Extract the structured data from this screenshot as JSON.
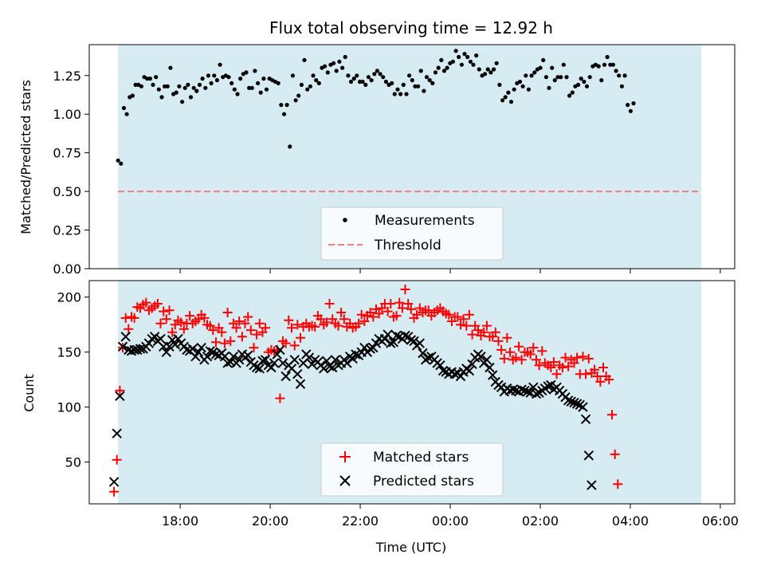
{
  "figure": {
    "title": "Flux total observing time = 12.92 h"
  },
  "colors": {
    "span": "#add8e6",
    "measurement": "#000000",
    "threshold": "#f08080",
    "matched": "#ff0000",
    "predicted": "#000000"
  },
  "chart_data": [
    {
      "type": "scatter",
      "title": "Flux total observing time = 12.92 h",
      "ylabel": "Matched/Predicted stars",
      "xlabel": "",
      "x_unit": "hours",
      "xlim": [
        15.98,
        30.32
      ],
      "ylim": [
        0.0,
        1.45
      ],
      "yticks": [
        0.0,
        0.25,
        0.5,
        0.75,
        1.0,
        1.25
      ],
      "ytick_labels": [
        "0.00",
        "0.25",
        "0.50",
        "0.75",
        "1.00",
        "1.25"
      ],
      "shaded_span": [
        16.62,
        29.58
      ],
      "threshold": 0.5,
      "legend_position": "lower center",
      "series": [
        {
          "name": "Measurements",
          "x_start": 16.62,
          "x_step": 0.0647,
          "values": [
            0.7,
            0.68,
            1.04,
            1.0,
            1.11,
            1.12,
            1.19,
            1.19,
            1.18,
            1.24,
            1.23,
            1.23,
            1.19,
            1.24,
            1.16,
            1.11,
            1.18,
            1.18,
            1.3,
            1.13,
            1.14,
            1.18,
            1.08,
            1.17,
            1.19,
            1.11,
            1.17,
            1.15,
            1.19,
            1.23,
            1.17,
            1.25,
            1.2,
            1.25,
            1.22,
            1.32,
            1.24,
            1.25,
            1.24,
            1.2,
            1.16,
            1.13,
            1.23,
            1.26,
            1.27,
            1.17,
            1.17,
            1.28,
            1.2,
            1.14,
            1.23,
            1.16,
            1.23,
            1.22,
            1.21,
            1.2,
            1.06,
            1.0,
            1.06,
            0.79,
            1.25,
            1.09,
            1.12,
            1.19,
            1.35,
            1.16,
            1.18,
            1.25,
            1.22,
            1.2,
            1.3,
            1.31,
            1.27,
            1.32,
            1.33,
            1.28,
            1.34,
            1.3,
            1.37,
            1.25,
            1.21,
            1.23,
            1.25,
            1.21,
            1.21,
            1.19,
            1.24,
            1.22,
            1.26,
            1.28,
            1.26,
            1.24,
            1.21,
            1.19,
            1.2,
            1.13,
            1.16,
            1.13,
            1.19,
            1.13,
            1.25,
            1.22,
            1.18,
            1.18,
            1.28,
            1.15,
            1.24,
            1.22,
            1.2,
            1.27,
            1.3,
            1.35,
            1.28,
            1.3,
            1.33,
            1.34,
            1.41,
            1.37,
            1.32,
            1.39,
            1.37,
            1.34,
            1.32,
            1.38,
            1.29,
            1.25,
            1.26,
            1.29,
            1.27,
            1.29,
            1.33,
            1.19,
            1.09,
            1.11,
            1.14,
            1.08,
            1.16,
            1.2,
            1.21,
            1.18,
            1.25,
            1.16,
            1.25,
            1.27,
            1.29,
            1.3,
            1.35,
            1.24,
            1.17,
            1.3,
            1.22,
            1.24,
            1.24,
            1.32,
            1.24,
            1.12,
            1.14,
            1.18,
            1.19,
            1.23,
            1.21,
            1.18,
            1.24,
            1.31,
            1.32,
            1.31,
            1.22,
            1.32,
            1.37,
            1.32,
            1.32,
            1.28,
            1.25,
            1.18,
            1.25,
            1.06,
            1.02,
            1.07
          ]
        },
        {
          "name": "Threshold",
          "values": [
            0.5
          ]
        }
      ]
    },
    {
      "type": "scatter",
      "title": "",
      "ylabel": "Count",
      "xlabel": "Time (UTC)",
      "x_unit": "hours",
      "xlim": [
        15.98,
        30.32
      ],
      "ylim": [
        12,
        215
      ],
      "yticks": [
        50,
        100,
        150,
        200
      ],
      "ytick_labels": [
        "50",
        "100",
        "150",
        "200"
      ],
      "xticks": [
        18,
        20,
        22,
        24,
        26,
        28,
        30
      ],
      "xtick_labels": [
        "18:00",
        "20:00",
        "22:00",
        "00:00",
        "02:00",
        "04:00",
        "06:00"
      ],
      "shaded_span": [
        16.62,
        29.58
      ],
      "legend_position": "lower center",
      "series": [
        {
          "name": "Matched stars",
          "x_start": 16.53,
          "x_step": 0.0647,
          "values": [
            23,
            52,
            115,
            154,
            181,
            171,
            182,
            181,
            191,
            190,
            193,
            195,
            188,
            190,
            192,
            194,
            176,
            187,
            180,
            188,
            168,
            175,
            179,
            177,
            171,
            176,
            183,
            176,
            178,
            180,
            184,
            181,
            175,
            174,
            170,
            159,
            172,
            168,
            158,
            186,
            160,
            176,
            172,
            178,
            164,
            176,
            182,
            170,
            154,
            166,
            176,
            168,
            172,
            150,
            152,
            151,
            152,
            108,
            160,
            158,
            179,
            172,
            156,
            175,
            163,
            173,
            176,
            173,
            174,
            173,
            183,
            180,
            175,
            177,
            194,
            180,
            176,
            174,
            186,
            180,
            173,
            176,
            172,
            173,
            176,
            184,
            178,
            183,
            186,
            182,
            189,
            185,
            190,
            194,
            187,
            194,
            182,
            183,
            195,
            190,
            207,
            194,
            189,
            181,
            184,
            190,
            186,
            188,
            188,
            183,
            186,
            188,
            190,
            187,
            185,
            184,
            178,
            182,
            182,
            175,
            180,
            174,
            184,
            166,
            174,
            170,
            165,
            168,
            174,
            164,
            164,
            168,
            160,
            152,
            144,
            163,
            150,
            143,
            145,
            155,
            143,
            150,
            150,
            148,
            154,
            143,
            138,
            151,
            140,
            138,
            136,
            141,
            130,
            138,
            136,
            145,
            137,
            143,
            140,
            145,
            130,
            146,
            130,
            144,
            131,
            134,
            128,
            123,
            136,
            128,
            125,
            93,
            57,
            30
          ]
        },
        {
          "name": "Predicted stars",
          "x_start": 16.53,
          "x_step": 0.0647,
          "values": [
            32,
            76,
            110,
            155,
            164,
            152,
            151,
            152,
            152,
            153,
            153,
            155,
            158,
            162,
            164,
            160,
            162,
            155,
            150,
            155,
            161,
            157,
            162,
            158,
            155,
            152,
            151,
            153,
            146,
            150,
            154,
            143,
            146,
            151,
            150,
            148,
            147,
            149,
            146,
            140,
            141,
            146,
            140,
            143,
            148,
            145,
            147,
            141,
            138,
            136,
            135,
            142,
            143,
            138,
            136,
            140,
            148,
            152,
            140,
            128,
            138,
            135,
            143,
            130,
            121,
            140,
            148,
            145,
            139,
            143,
            141,
            138,
            135,
            142,
            137,
            136,
            143,
            138,
            140,
            143,
            140,
            146,
            144,
            148,
            147,
            150,
            154,
            150,
            153,
            154,
            158,
            162,
            160,
            162,
            166,
            158,
            159,
            165,
            164,
            162,
            165,
            164,
            161,
            160,
            156,
            158,
            149,
            143,
            145,
            146,
            143,
            140,
            138,
            133,
            132,
            130,
            132,
            130,
            131,
            128,
            132,
            135,
            133,
            139,
            145,
            148,
            146,
            140,
            143,
            136,
            129,
            123,
            120,
            118,
            114,
            117,
            115,
            116,
            115,
            114,
            116,
            115,
            114,
            113,
            118,
            112,
            113,
            115,
            117,
            119,
            120,
            116,
            118,
            115,
            112,
            109,
            106,
            105,
            104,
            103,
            102,
            100,
            89,
            56,
            29
          ]
        }
      ]
    }
  ]
}
